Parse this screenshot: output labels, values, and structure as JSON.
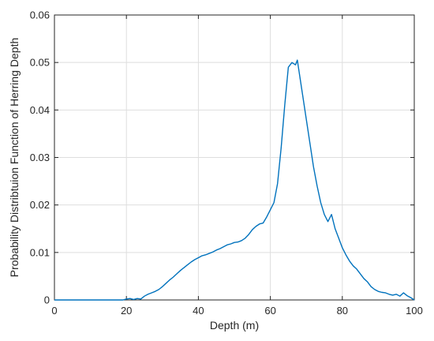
{
  "chart_data": {
    "type": "line",
    "xlabel": "Depth (m)",
    "ylabel": "Probability Distribtuion Function of Herring Depth",
    "xlim": [
      0,
      100
    ],
    "ylim": [
      0,
      0.06
    ],
    "xticks": [
      0,
      20,
      40,
      60,
      80,
      100
    ],
    "yticks": [
      0,
      0.01,
      0.02,
      0.03,
      0.04,
      0.05,
      0.06
    ],
    "xtick_labels": [
      "0",
      "20",
      "40",
      "60",
      "80",
      "100"
    ],
    "ytick_labels": [
      "0",
      "0.01",
      "0.02",
      "0.03",
      "0.04",
      "0.05",
      "0.06"
    ],
    "grid": true,
    "series": [
      {
        "color": "#0072BD",
        "x": [
          0,
          19,
          20,
          21,
          22,
          23,
          24,
          25,
          26,
          27,
          28,
          29,
          30,
          31,
          32,
          33,
          34,
          35,
          36,
          37,
          38,
          39,
          40,
          41,
          42,
          43,
          44,
          45,
          46,
          47,
          48,
          49,
          50,
          51,
          52,
          53,
          54,
          55,
          56,
          57,
          58,
          59,
          60,
          61,
          62,
          63,
          64,
          65,
          66,
          67,
          67.5,
          68,
          69,
          70,
          71,
          72,
          73,
          74,
          75,
          76,
          77,
          78,
          79,
          80,
          81,
          82,
          83,
          84,
          85,
          86,
          87,
          88,
          89,
          90,
          91,
          92,
          93,
          94,
          95,
          96,
          97,
          98,
          99,
          100
        ],
        "y": [
          0,
          0,
          0.0002,
          0.0003,
          0.0001,
          0.0003,
          0.0002,
          0.0008,
          0.0012,
          0.0015,
          0.0018,
          0.0022,
          0.0028,
          0.0035,
          0.0042,
          0.0048,
          0.0055,
          0.0062,
          0.0068,
          0.0074,
          0.008,
          0.0085,
          0.0089,
          0.0093,
          0.0095,
          0.0098,
          0.0101,
          0.0105,
          0.0108,
          0.0112,
          0.0116,
          0.0118,
          0.0121,
          0.0122,
          0.0125,
          0.013,
          0.0138,
          0.0148,
          0.0155,
          0.016,
          0.0162,
          0.0175,
          0.019,
          0.0205,
          0.0245,
          0.032,
          0.041,
          0.049,
          0.05,
          0.0495,
          0.0505,
          0.048,
          0.043,
          0.038,
          0.033,
          0.028,
          0.024,
          0.0205,
          0.018,
          0.0165,
          0.018,
          0.015,
          0.013,
          0.011,
          0.0095,
          0.0082,
          0.0072,
          0.0065,
          0.0055,
          0.0045,
          0.0038,
          0.0028,
          0.0022,
          0.0018,
          0.0016,
          0.0015,
          0.0012,
          0.001,
          0.0012,
          0.0008,
          0.0015,
          0.0009,
          0.0005,
          0
        ]
      }
    ]
  }
}
